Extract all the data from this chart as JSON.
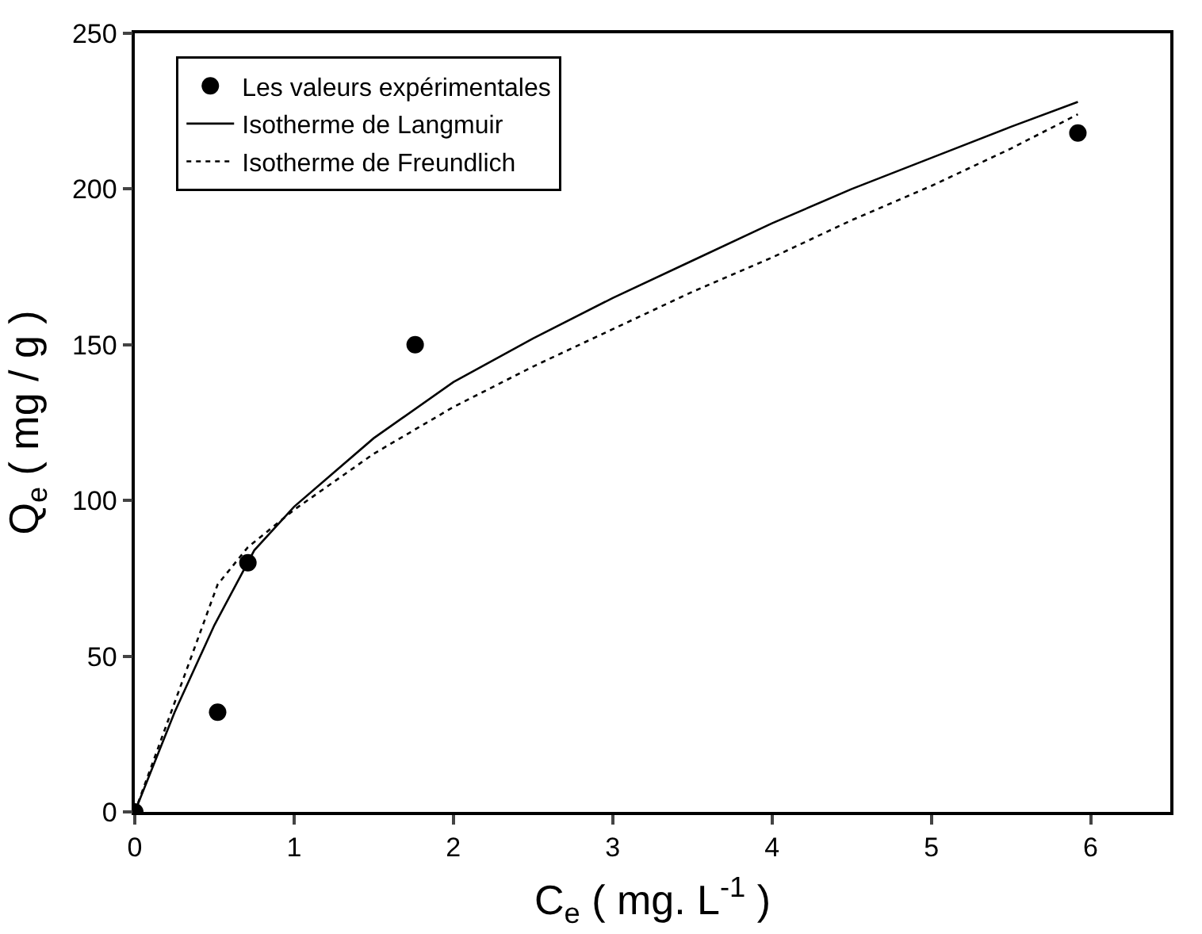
{
  "chart_data": {
    "type": "line",
    "xlabel": "C$_{e}$ ( mg. L$^{-1}$ )",
    "ylabel": "Q$_{e}$ ( mg / g )",
    "xlim": [
      0,
      6.5
    ],
    "xticks": [
      0,
      1,
      2,
      3,
      4,
      5,
      6
    ],
    "ylim": [
      0,
      250
    ],
    "yticks": [
      0,
      50,
      100,
      150,
      200,
      250
    ],
    "legend": "top left",
    "series": [
      {
        "name": "Les valeurs expérimentales",
        "type": "scatter",
        "marker": "circle",
        "color": "#000000",
        "x": [
          0,
          0.52,
          0.71,
          1.76,
          5.92
        ],
        "values": [
          0,
          32,
          80,
          150,
          218
        ]
      },
      {
        "name": "Isotherme de Langmuir",
        "line_style": "solid",
        "color": "#000000",
        "x": [
          0,
          0.25,
          0.5,
          0.75,
          1,
          1.5,
          2,
          2.5,
          3,
          3.5,
          4,
          4.5,
          5,
          5.5,
          5.92
        ],
        "values": [
          0,
          32,
          60,
          84,
          98,
          120,
          138,
          152,
          165,
          177,
          189,
          200,
          210,
          220,
          228
        ]
      },
      {
        "name": "Isotherme de Freundlich",
        "line_style": "dotted",
        "color": "#000000",
        "x": [
          0,
          0.52,
          0.71,
          1,
          1.5,
          2,
          2.5,
          3,
          3.5,
          4,
          4.5,
          5,
          5.5,
          5.92
        ],
        "values": [
          0,
          73,
          85,
          97,
          115,
          130,
          143,
          155,
          167,
          178,
          190,
          201,
          213,
          224
        ]
      }
    ]
  }
}
